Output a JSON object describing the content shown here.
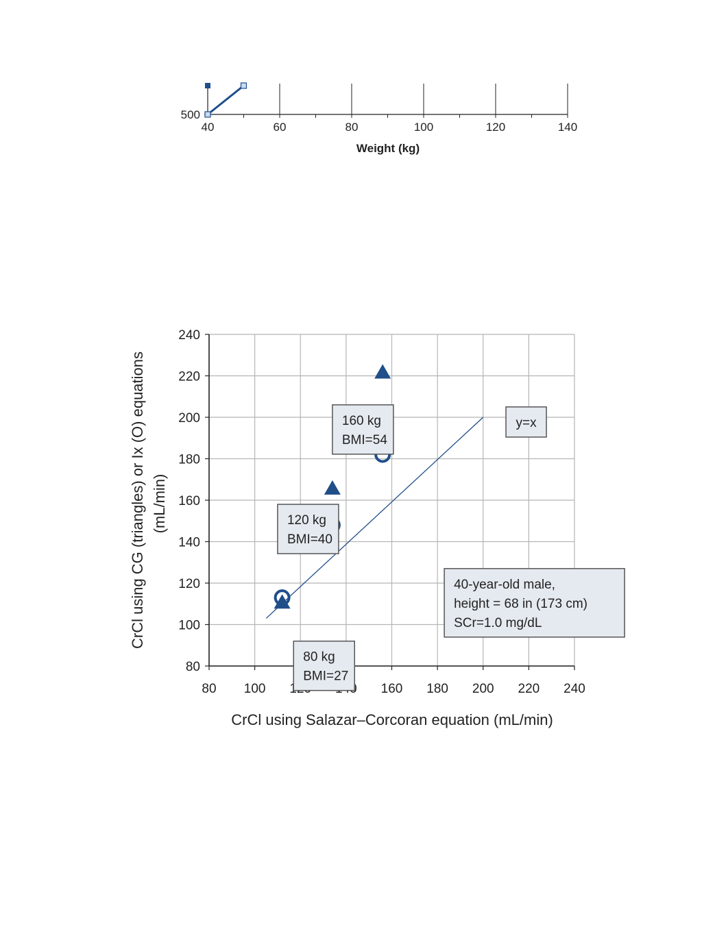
{
  "chart_data": [
    {
      "type": "line",
      "title": "",
      "xlabel": "Weight (kg)",
      "ylabel": "",
      "x_ticks": [
        "40",
        "60",
        "80",
        "100",
        "120",
        "140"
      ],
      "y_ticks": [
        "500"
      ],
      "xlim": [
        40,
        140
      ],
      "series": [
        {
          "marker": "filled-square",
          "points": [
            [
              40,
              540
            ]
          ]
        },
        {
          "marker": "open-square",
          "points": [
            [
              40,
              500
            ],
            [
              50,
              540
            ]
          ]
        }
      ],
      "colors": {
        "line": "#1f4e89",
        "open_fill": "#c9dcef"
      }
    },
    {
      "type": "scatter",
      "title": "",
      "xlabel": "CrCl using Salazar–Corcoran equation (mL/min)",
      "ylabel_line1": "CrCl using CG (triangles) or Ix (O) equations",
      "ylabel_line2": "(mL/min)",
      "xlim": [
        80,
        240
      ],
      "ylim": [
        80,
        240
      ],
      "x_ticks": [
        "80",
        "100",
        "120",
        "140",
        "160",
        "180",
        "200",
        "220",
        "240"
      ],
      "y_ticks": [
        "80",
        "100",
        "120",
        "140",
        "160",
        "180",
        "200",
        "220",
        "240"
      ],
      "grid": true,
      "series": [
        {
          "marker": "triangle",
          "points": [
            [
              112,
              111
            ],
            [
              134,
              166
            ],
            [
              156,
              222
            ]
          ]
        },
        {
          "marker": "circle",
          "points": [
            [
              112,
              113
            ],
            [
              134,
              148
            ],
            [
              156,
              182
            ]
          ]
        }
      ],
      "reference_line": {
        "label": "y=x",
        "from": [
          105,
          103
        ],
        "to": [
          200,
          200
        ]
      },
      "annotations": [
        {
          "lines": [
            "80 kg",
            "BMI=27"
          ],
          "x": 117,
          "y": 92
        },
        {
          "lines": [
            "120 kg",
            "BMI=40"
          ],
          "x": 110,
          "y": 158
        },
        {
          "lines": [
            "160 kg",
            "BMI=54"
          ],
          "x": 134,
          "y": 206
        },
        {
          "lines": [
            "y=x"
          ],
          "x": 210,
          "y": 205
        },
        {
          "lines": [
            "40-year-old male,",
            "height = 68 in (173 cm)",
            "SCr=1.0 mg/dL"
          ],
          "x": 183,
          "y": 127
        }
      ],
      "colors": {
        "marker": "#1f4e89",
        "grid": "#b5b5b5",
        "box_fill": "#e5eaf0",
        "box_border": "#555555"
      }
    }
  ]
}
